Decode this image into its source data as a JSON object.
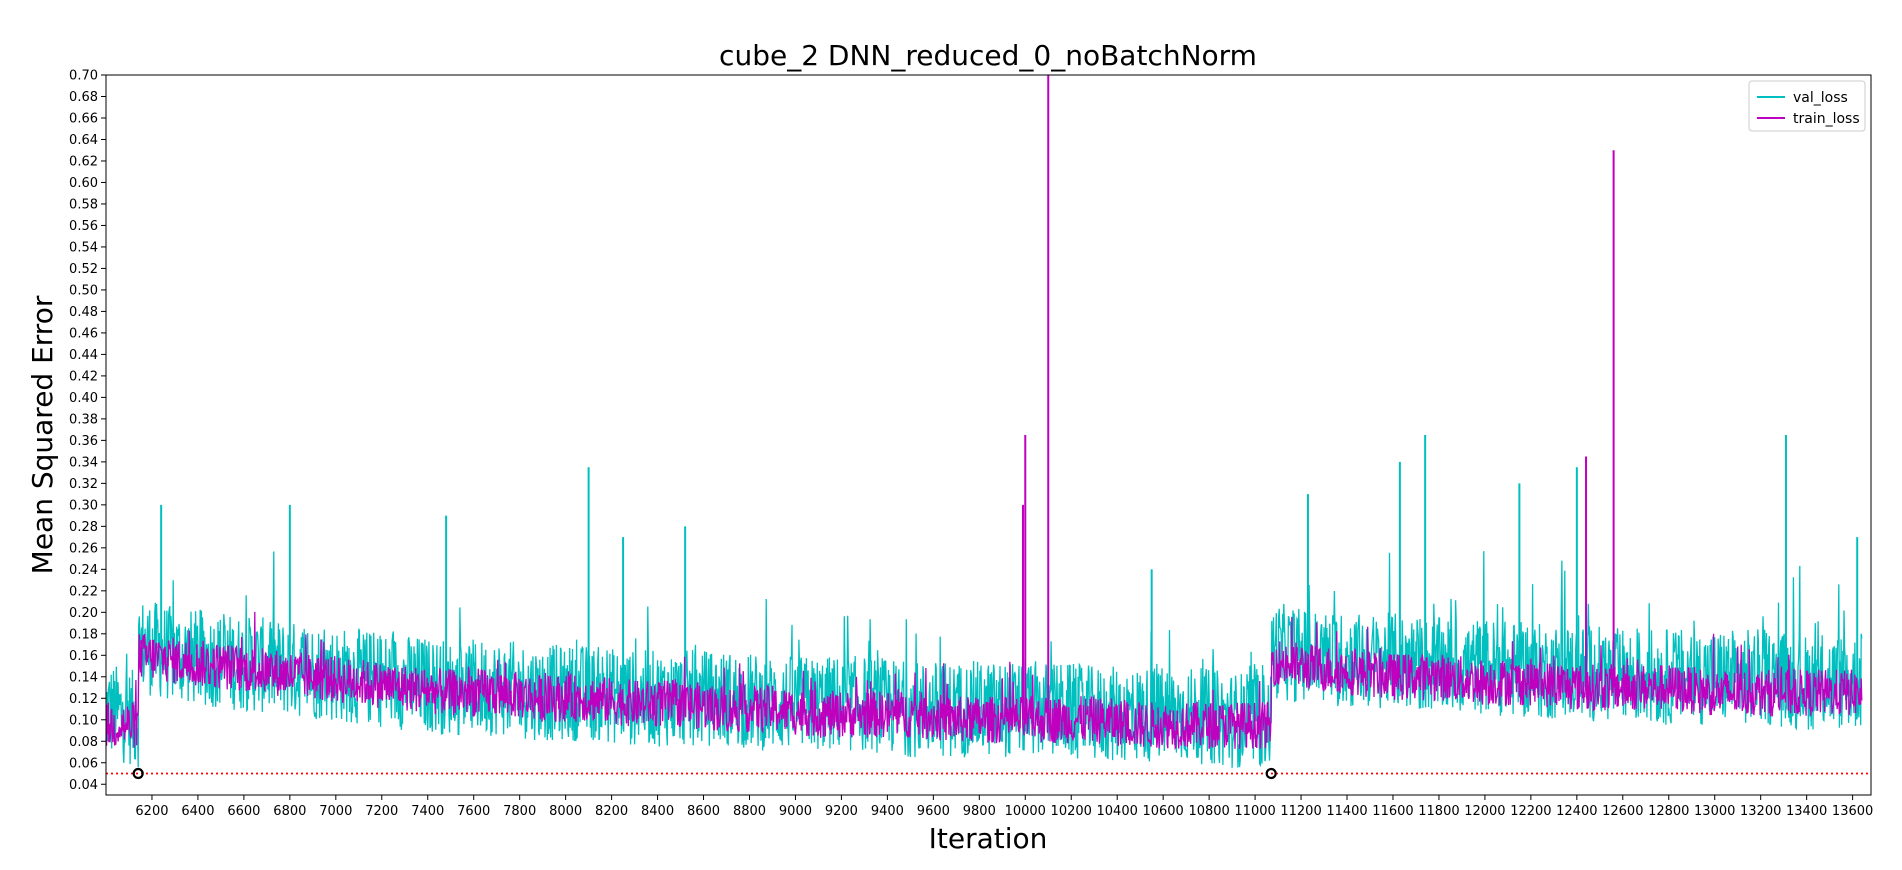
{
  "chart_data": {
    "type": "line",
    "title": "cube_2 DNN_reduced_0_noBatchNorm",
    "xlabel": "Iteration",
    "ylabel": "Mean Squared Error",
    "xlim": [
      6000,
      13680
    ],
    "ylim": [
      0.03,
      0.7
    ],
    "xticks": [
      6200,
      6400,
      6600,
      6800,
      7000,
      7200,
      7400,
      7600,
      7800,
      8000,
      8200,
      8400,
      8600,
      8800,
      9000,
      9200,
      9400,
      9600,
      9800,
      10000,
      10200,
      10400,
      10600,
      10800,
      11000,
      11200,
      11400,
      11600,
      11800,
      12000,
      12200,
      12400,
      12600,
      12800,
      13000,
      13200,
      13400,
      13600
    ],
    "yticks": [
      0.04,
      0.06,
      0.08,
      0.1,
      0.12,
      0.14,
      0.16,
      0.18,
      0.2,
      0.22,
      0.24,
      0.26,
      0.28,
      0.3,
      0.32,
      0.34,
      0.36,
      0.38,
      0.4,
      0.42,
      0.44,
      0.46,
      0.48,
      0.5,
      0.52,
      0.54,
      0.56,
      0.58,
      0.6,
      0.62,
      0.64,
      0.66,
      0.68,
      0.7
    ],
    "legend": "top-right",
    "grid": false,
    "series": [
      {
        "name": "val_loss",
        "color": "#00bfbf",
        "x": [
          6000,
          6140,
          6141,
          6300,
          6500,
          6700,
          6900,
          7100,
          7300,
          7500,
          7700,
          7900,
          8100,
          8300,
          8500,
          8700,
          8900,
          9100,
          9300,
          9500,
          9700,
          9900,
          10100,
          10300,
          10500,
          10700,
          10900,
          11070,
          11071,
          11200,
          11400,
          11600,
          11800,
          12000,
          12200,
          12400,
          12600,
          12800,
          13000,
          13200,
          13400,
          13640
        ],
        "y": [
          0.11,
          0.1,
          0.17,
          0.16,
          0.155,
          0.15,
          0.145,
          0.14,
          0.135,
          0.13,
          0.13,
          0.125,
          0.125,
          0.12,
          0.12,
          0.12,
          0.115,
          0.115,
          0.115,
          0.11,
          0.11,
          0.11,
          0.11,
          0.105,
          0.105,
          0.105,
          0.1,
          0.1,
          0.165,
          0.16,
          0.155,
          0.155,
          0.15,
          0.15,
          0.145,
          0.145,
          0.14,
          0.14,
          0.14,
          0.14,
          0.135,
          0.135
        ],
        "spikes": [
          {
            "x": 6240,
            "y": 0.3
          },
          {
            "x": 6800,
            "y": 0.3
          },
          {
            "x": 7480,
            "y": 0.29
          },
          {
            "x": 8100,
            "y": 0.335
          },
          {
            "x": 8250,
            "y": 0.27
          },
          {
            "x": 8520,
            "y": 0.28
          },
          {
            "x": 10550,
            "y": 0.24
          },
          {
            "x": 11230,
            "y": 0.31
          },
          {
            "x": 11630,
            "y": 0.34
          },
          {
            "x": 11740,
            "y": 0.365
          },
          {
            "x": 12150,
            "y": 0.32
          },
          {
            "x": 12400,
            "y": 0.335
          },
          {
            "x": 13310,
            "y": 0.365
          },
          {
            "x": 13620,
            "y": 0.27
          }
        ]
      },
      {
        "name": "train_loss",
        "color": "#bf00bf",
        "x": [
          6000,
          6140,
          6141,
          6300,
          6500,
          6700,
          6900,
          7100,
          7300,
          7500,
          7700,
          7900,
          8100,
          8300,
          8500,
          8700,
          8900,
          9100,
          9300,
          9500,
          9700,
          9900,
          10100,
          10300,
          10500,
          10700,
          10900,
          11070,
          11071,
          11200,
          11400,
          11600,
          11800,
          12000,
          12200,
          12400,
          12600,
          12800,
          13000,
          13200,
          13400,
          13640
        ],
        "y": [
          0.095,
          0.095,
          0.16,
          0.155,
          0.15,
          0.145,
          0.14,
          0.135,
          0.13,
          0.125,
          0.125,
          0.12,
          0.12,
          0.115,
          0.115,
          0.11,
          0.11,
          0.105,
          0.105,
          0.105,
          0.1,
          0.1,
          0.1,
          0.1,
          0.095,
          0.095,
          0.095,
          0.095,
          0.155,
          0.15,
          0.145,
          0.14,
          0.14,
          0.135,
          0.135,
          0.13,
          0.13,
          0.13,
          0.125,
          0.125,
          0.125,
          0.125
        ],
        "spikes": [
          {
            "x": 9990,
            "y": 0.3
          },
          {
            "x": 10000,
            "y": 0.365
          },
          {
            "x": 10100,
            "y": 0.7
          },
          {
            "x": 12440,
            "y": 0.345
          },
          {
            "x": 12560,
            "y": 0.63
          }
        ]
      }
    ],
    "reference_line": {
      "y": 0.05,
      "color": "#ff0000",
      "style": "dotted"
    },
    "markers": [
      {
        "x": 6140,
        "y": 0.05
      },
      {
        "x": 11070,
        "y": 0.05
      }
    ]
  }
}
